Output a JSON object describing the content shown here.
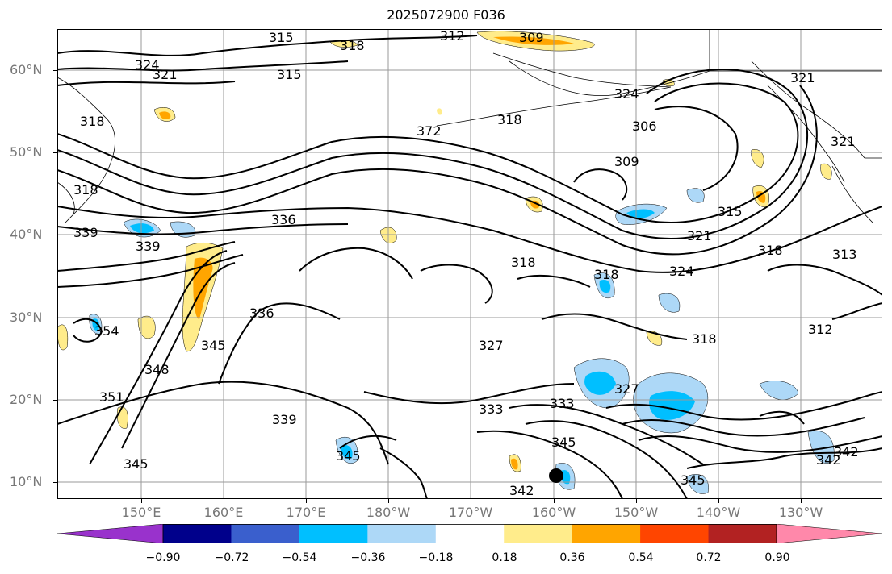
{
  "title": "2025072900 F036",
  "map": {
    "lat_labels": [
      "60°N",
      "50°N",
      "40°N",
      "30°N",
      "20°N",
      "10°N"
    ],
    "lon_labels": [
      "150°E",
      "160°E",
      "170°E",
      "180°W",
      "170°W",
      "160°W",
      "150°W",
      "140°W",
      "130°W"
    ],
    "contour_labels": [
      "315",
      "318",
      "312",
      "309",
      "324",
      "321",
      "315",
      "318",
      "321",
      "324",
      "318",
      "372",
      "306",
      "309",
      "321",
      "318",
      "336",
      "339",
      "339",
      "315",
      "321",
      "318",
      "318",
      "324",
      "318",
      "318",
      "313",
      "336",
      "345",
      "354",
      "348",
      "351",
      "327",
      "318",
      "312",
      "327",
      "333",
      "333",
      "339",
      "345",
      "345",
      "345",
      "342",
      "342",
      "345",
      "342"
    ],
    "storm_marker": "tropical-cyclone-center"
  },
  "colorbar": {
    "ticks": [
      "−0.90",
      "−0.72",
      "−0.54",
      "−0.36",
      "−0.18",
      "0.18",
      "0.36",
      "0.54",
      "0.72",
      "0.90"
    ],
    "colors": [
      "#9932cc",
      "#00008b",
      "#3a5fcd",
      "#00bfff",
      "#add8f7",
      "#ffffff",
      "#ffec8b",
      "#ffa500",
      "#ff4500",
      "#b22222",
      "#ff88aa"
    ]
  }
}
